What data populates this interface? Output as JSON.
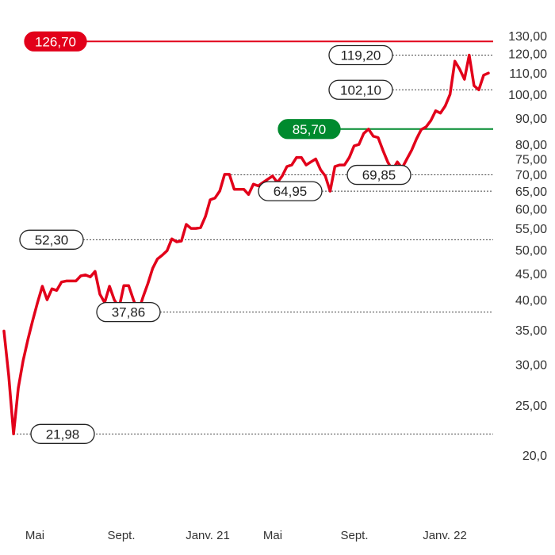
{
  "chart_data": {
    "type": "line",
    "scale": "log",
    "ylim": [
      20,
      130
    ],
    "y_ticks": [
      "130,00",
      "120,00",
      "110,00",
      "100,00",
      "90,00",
      "80,00",
      "75,00",
      "70,00",
      "65,00",
      "60,00",
      "55,00",
      "50,00",
      "45,00",
      "40,00",
      "35,00",
      "30,00",
      "25,00",
      "20,0"
    ],
    "x_ticks": [
      "Mai",
      "Sept.",
      "Janv. 21",
      "Mai",
      "Sept.",
      "Janv. 22"
    ],
    "series": [
      {
        "color": "#e2001a",
        "values": [
          34.8,
          28.5,
          21.98,
          27.0,
          30.5,
          33.5,
          36.5,
          39.5,
          42.5,
          40.0,
          42.0,
          41.7,
          43.3,
          43.5,
          43.5,
          43.5,
          44.5,
          44.7,
          44.3,
          45.4,
          41.0,
          39.5,
          42.5,
          40.0,
          38.6,
          42.6,
          42.6,
          40.0,
          37.86,
          40.5,
          43.0,
          46.0,
          48.0,
          48.8,
          49.8,
          52.5,
          51.8,
          52.0,
          56.0,
          55.0,
          55.0,
          55.2,
          58.0,
          62.5,
          63.0,
          65.0,
          70.0,
          70.0,
          65.5,
          65.5,
          65.5,
          64.0,
          67.0,
          66.5,
          67.5,
          68.5,
          69.5,
          67.5,
          69.5,
          72.5,
          73.0,
          75.5,
          75.5,
          73.0,
          74.0,
          75.0,
          71.5,
          69.5,
          64.95,
          72.5,
          73.0,
          73.0,
          75.5,
          79.5,
          80.0,
          84.0,
          85.7,
          83.0,
          82.5,
          78.0,
          74.0,
          71.3,
          74.0,
          72.0,
          75.0,
          78.0,
          82.0,
          85.5,
          86.5,
          89.0,
          93.0,
          92.0,
          95.0,
          100.0,
          116.0,
          112.0,
          107.0,
          119.2,
          104.0,
          102.1,
          109.0,
          110.0
        ]
      }
    ],
    "reference_lines": [
      {
        "value": 126.7,
        "label": "126,70",
        "style": "solid",
        "color": "#e2001a",
        "label_style": "red-filled"
      },
      {
        "value": 119.2,
        "label": "119,20",
        "style": "dotted",
        "label_style": "outline"
      },
      {
        "value": 102.1,
        "label": "102,10",
        "style": "dotted",
        "label_style": "outline"
      },
      {
        "value": 85.7,
        "label": "85,70",
        "style": "solid",
        "color": "#008a2e",
        "label_style": "green-filled"
      },
      {
        "value": 69.85,
        "label": "69,85",
        "style": "dotted",
        "label_style": "outline"
      },
      {
        "value": 64.95,
        "label": "64,95",
        "style": "dotted",
        "label_style": "outline"
      },
      {
        "value": 52.3,
        "label": "52,30",
        "style": "dotted",
        "label_style": "outline"
      },
      {
        "value": 37.86,
        "label": "37,86",
        "style": "dotted",
        "label_style": "outline"
      },
      {
        "value": 21.98,
        "label": "21,98",
        "style": "dotted",
        "label_style": "outline"
      }
    ],
    "colors": {
      "line": "#e2001a",
      "resistance": "#e2001a",
      "support": "#008a2e"
    }
  }
}
